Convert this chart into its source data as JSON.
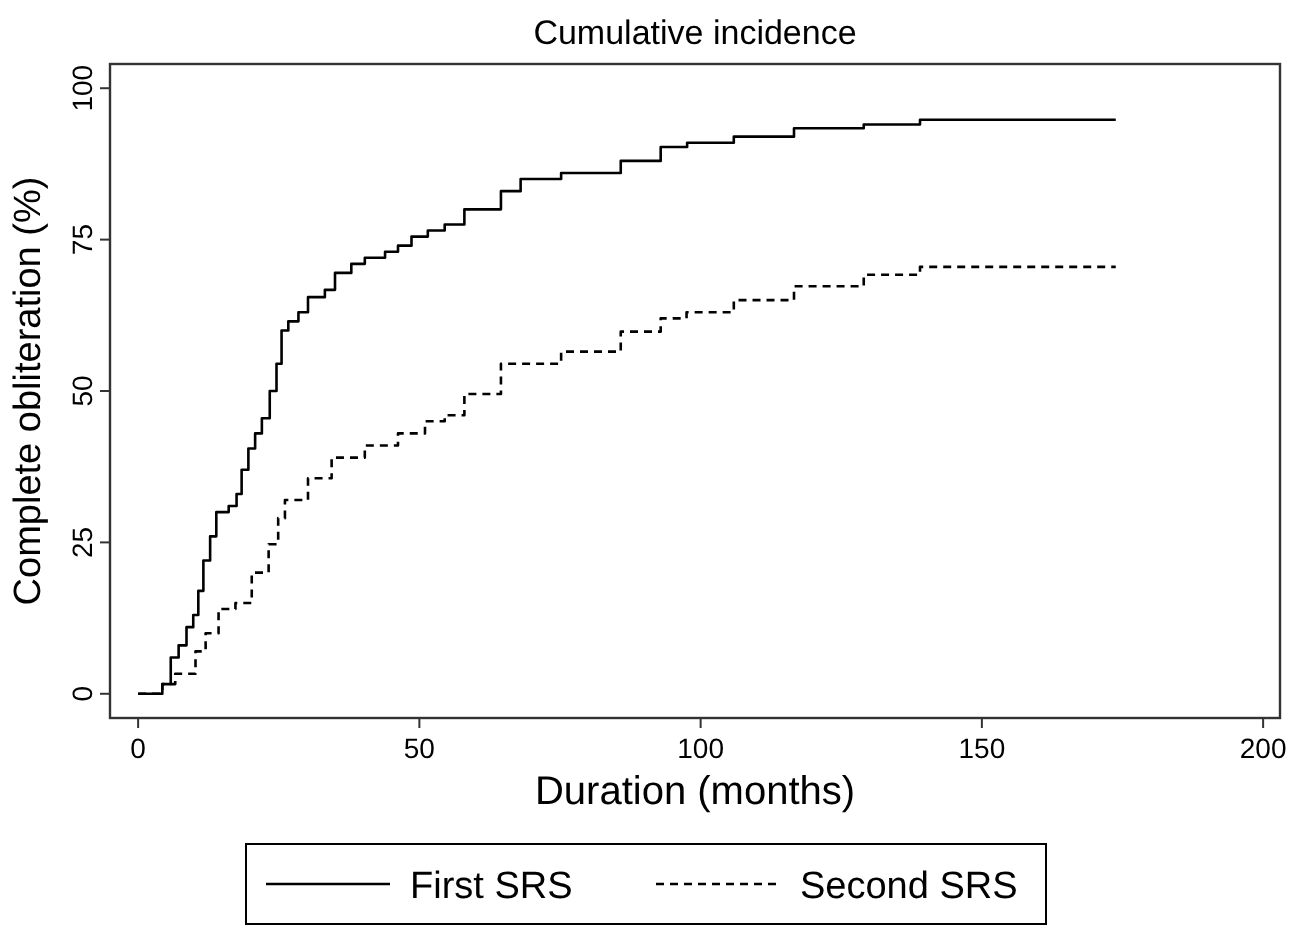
{
  "chart_data": {
    "type": "step",
    "title": "Cumulative incidence",
    "xlabel": "Duration (months)",
    "ylabel": "Complete obliteration (%)",
    "xlim": [
      -5,
      203
    ],
    "xticks": [
      0,
      50,
      100,
      150,
      200
    ],
    "ylim": [
      -4,
      104
    ],
    "yticks": [
      0,
      25,
      50,
      75,
      100
    ],
    "grid": false,
    "legend": "bottom",
    "series": [
      {
        "name": "First SRS",
        "color": "#000000",
        "line_style": "solid",
        "x": [
          0,
          3.7,
          4.3,
          5.8,
          7.2,
          8.6,
          9.8,
          10.7,
          11.6,
          12.8,
          13.9,
          16.1,
          17.5,
          18.4,
          19.6,
          20.8,
          22,
          23.4,
          24.6,
          25.5,
          26.7,
          28.5,
          30.2,
          33.2,
          35,
          37.9,
          40.3,
          43.9,
          46.2,
          48.6,
          51.5,
          54.5,
          58,
          64.5,
          68,
          75.2,
          85.8,
          92.9,
          97.6,
          105.9,
          116.6,
          129,
          139,
          173.8
        ],
        "values": [
          0,
          0,
          1.6,
          6,
          8,
          11,
          13,
          17,
          22,
          26,
          30,
          31,
          33,
          37,
          40.5,
          43,
          45.5,
          50,
          54.5,
          60,
          61.5,
          63,
          65.5,
          66.7,
          69.5,
          71,
          72,
          73,
          74,
          75.5,
          76.5,
          77.5,
          80,
          83,
          85,
          86,
          88,
          90.3,
          91,
          92,
          93.4,
          94,
          94.8,
          94.8
        ]
      },
      {
        "name": "Second SRS",
        "color": "#000000",
        "line_style": "dashed",
        "x": [
          0,
          4.3,
          6.6,
          10.2,
          12,
          14.3,
          17.3,
          20.2,
          23.2,
          24.9,
          26.1,
          30.2,
          34.4,
          40.3,
          46.2,
          51,
          54.5,
          58,
          64.5,
          75.2,
          85.8,
          92.9,
          97.5,
          105.9,
          116.6,
          129,
          139,
          173.8
        ],
        "values": [
          0,
          1.6,
          3.3,
          7,
          10,
          14,
          15,
          20,
          24.7,
          29,
          32,
          35.6,
          39,
          41,
          43,
          45,
          46,
          49.5,
          54.5,
          56.5,
          59.8,
          62,
          63,
          65,
          67.3,
          69.2,
          70.5,
          70.5
        ]
      }
    ]
  }
}
